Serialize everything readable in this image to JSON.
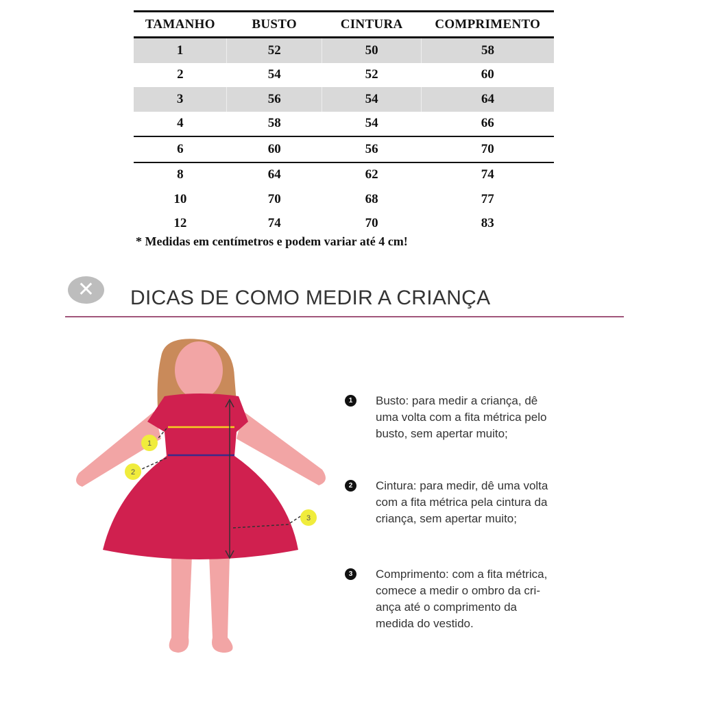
{
  "size_table": {
    "headers": [
      "TAMANHO",
      "BUSTO",
      "CINTURA",
      "COMPRIMENTO"
    ],
    "rows": [
      [
        "1",
        "52",
        "50",
        "58"
      ],
      [
        "2",
        "54",
        "52",
        "60"
      ],
      [
        "3",
        "56",
        "54",
        "64"
      ],
      [
        "4",
        "58",
        "54",
        "66"
      ],
      [
        "6",
        "60",
        "56",
        "70"
      ],
      [
        "8",
        "64",
        "62",
        "74"
      ],
      [
        "10",
        "70",
        "68",
        "77"
      ],
      [
        "12",
        "74",
        "70",
        "83"
      ]
    ],
    "note": "* Medidas em centímetros e podem variar até 4 cm!"
  },
  "tips": {
    "close_icon": "close-x-icon",
    "title": "DICAS DE COMO MEDIR A CRIANÇA",
    "divider_color": "#a0557a",
    "figure_markers": [
      "1",
      "2",
      "3"
    ],
    "items": [
      {
        "number": "1",
        "text": "Busto: para medir a criança, dê\numa volta com a fita métrica pelo\nbusto, sem apertar muito;"
      },
      {
        "number": "2",
        "text": "Cintura: para medir, dê uma volta\ncom a fita métrica pela cintura da\ncriança, sem apertar muito;"
      },
      {
        "number": "3",
        "text": "Comprimento: com a fita métrica,\ncomece a medir o ombro da cri-\nança até o comprimento da\nmedida do vestido."
      }
    ]
  },
  "colors": {
    "dress": "#d0204f",
    "skin": "#f2a5a5",
    "hair": "#c98a5a",
    "bust_line": "#f5d020",
    "waist_line": "#3a2a8a",
    "marker": "#f0ec3c"
  }
}
